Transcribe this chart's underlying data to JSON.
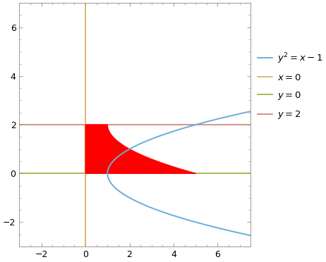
{
  "xlim": [
    -3,
    7.5
  ],
  "ylim": [
    -3,
    7
  ],
  "xticks": [
    -2,
    0,
    2,
    4,
    6
  ],
  "yticks": [
    -2,
    0,
    2,
    4,
    6
  ],
  "parabola_color": "#6baed6",
  "x0_color": "#d4a843",
  "y0_color": "#8da52a",
  "y2_color": "#c8766a",
  "fill_color": "#ff0000",
  "fill_alpha": 1.0,
  "legend_labels": [
    "$y^2 = x-1$",
    "$x = 0$",
    "$y = 0$",
    "$y = 2$"
  ],
  "parabola_lw": 1.4,
  "line_lw": 1.1,
  "figsize": [
    4.62,
    3.72
  ],
  "dpi": 100,
  "legend_fontsize": 9.5
}
